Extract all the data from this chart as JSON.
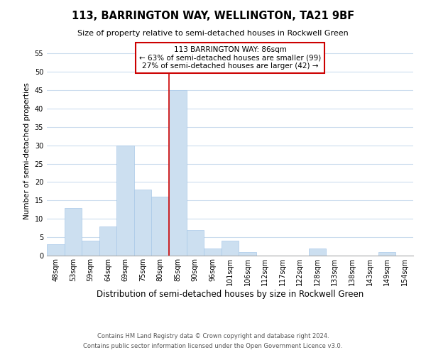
{
  "title": "113, BARRINGTON WAY, WELLINGTON, TA21 9BF",
  "subtitle": "Size of property relative to semi-detached houses in Rockwell Green",
  "xlabel": "Distribution of semi-detached houses by size in Rockwell Green",
  "ylabel": "Number of semi-detached properties",
  "bar_labels": [
    "48sqm",
    "53sqm",
    "59sqm",
    "64sqm",
    "69sqm",
    "75sqm",
    "80sqm",
    "85sqm",
    "90sqm",
    "96sqm",
    "101sqm",
    "106sqm",
    "112sqm",
    "117sqm",
    "122sqm",
    "128sqm",
    "133sqm",
    "138sqm",
    "143sqm",
    "149sqm",
    "154sqm"
  ],
  "bar_heights": [
    3,
    13,
    4,
    8,
    30,
    18,
    16,
    45,
    7,
    2,
    4,
    1,
    0,
    0,
    0,
    2,
    0,
    0,
    0,
    1,
    0
  ],
  "bar_color": "#ccdff0",
  "bar_edge_color": "#a8c8e8",
  "highlight_bar_index": 7,
  "highlight_line_color": "#cc0000",
  "ylim": [
    0,
    57
  ],
  "yticks": [
    0,
    5,
    10,
    15,
    20,
    25,
    30,
    35,
    40,
    45,
    50,
    55
  ],
  "annotation_title": "113 BARRINGTON WAY: 86sqm",
  "annotation_line1": "← 63% of semi-detached houses are smaller (99)",
  "annotation_line2": "27% of semi-detached houses are larger (42) →",
  "annotation_box_facecolor": "#ffffff",
  "annotation_box_edgecolor": "#cc0000",
  "footer_line1": "Contains HM Land Registry data © Crown copyright and database right 2024.",
  "footer_line2": "Contains public sector information licensed under the Open Government Licence v3.0.",
  "grid_color": "#ccddee",
  "background_color": "#ffffff",
  "title_fontsize": 10.5,
  "subtitle_fontsize": 8.0,
  "ylabel_fontsize": 7.5,
  "xlabel_fontsize": 8.5,
  "tick_fontsize": 7.0,
  "annotation_fontsize": 7.5,
  "footer_fontsize": 6.0
}
